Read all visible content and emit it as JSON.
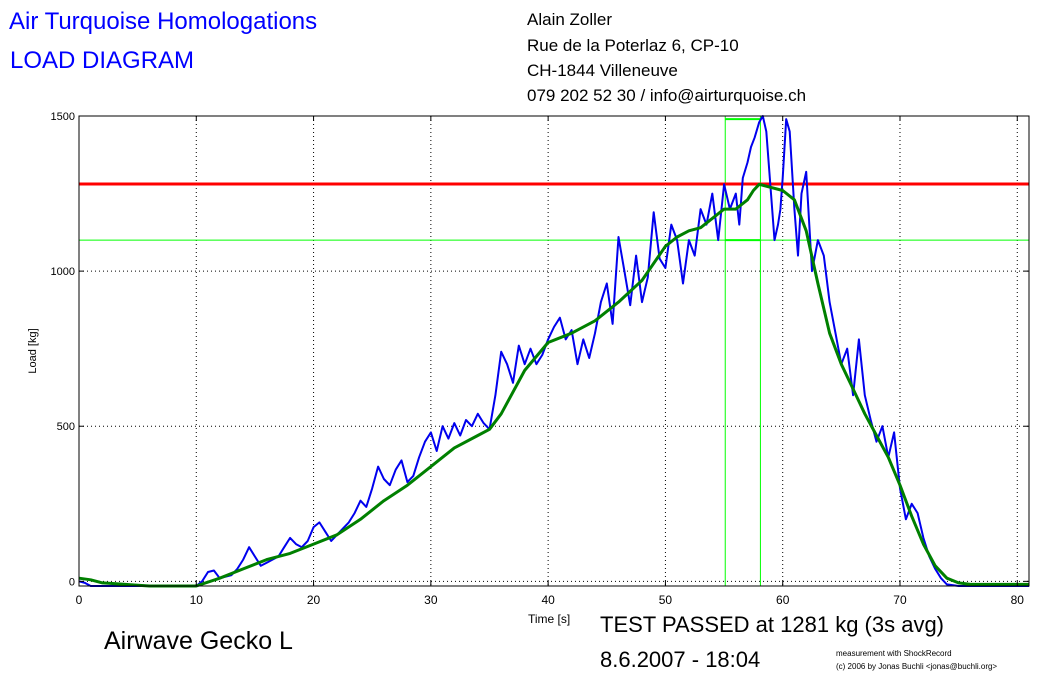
{
  "header": {
    "org_title": "Air Turquoise Homologations",
    "diagram_title": "LOAD DIAGRAM",
    "address": [
      "Alain Zoller",
      "Rue de la Poterlaz 6, CP-10",
      "CH-1844 Villeneuve",
      "079 202 52 30 / info@airturquoise.ch"
    ]
  },
  "footer": {
    "glider_name": "Airwave Gecko L",
    "result": "TEST PASSED at 1281 kg (3s avg)",
    "date": "8.6.2007 - 18:04",
    "credit_line1": "measurement with ShockRecord",
    "credit_line2": "(c) 2006 by Jonas Buchli <jonas@buchli.org>"
  },
  "colors": {
    "raw": "#0000ee",
    "avg": "#008000",
    "limit": "#ff0000",
    "window": "#00ff00"
  },
  "chart_data": {
    "type": "line",
    "xlabel": "Time [s]",
    "ylabel": "Load [kg]",
    "xlim": [
      0,
      81
    ],
    "ylim": [
      -15,
      1500
    ],
    "x_ticks": [
      0,
      10,
      20,
      30,
      40,
      50,
      60,
      70,
      80
    ],
    "y_ticks": [
      0,
      500,
      1000,
      1500
    ],
    "grid": true,
    "reference_lines": {
      "limit_load": 1281,
      "window_low": 1100,
      "window_high": 1490,
      "window_start": 55.1,
      "window_end": 58.1
    },
    "series": [
      {
        "key": "raw",
        "x": [
          0,
          0.5,
          1,
          2,
          3,
          4,
          5,
          6,
          7,
          8,
          9,
          10,
          10.5,
          11,
          11.5,
          12,
          12.5,
          13,
          13.5,
          14,
          14.5,
          15,
          15.5,
          16,
          16.5,
          17,
          17.5,
          18,
          18.5,
          19,
          19.5,
          20,
          20.5,
          21,
          21.5,
          22,
          22.5,
          23,
          23.5,
          24,
          24.5,
          25,
          25.5,
          26,
          26.5,
          27,
          27.5,
          28,
          28.5,
          29,
          29.5,
          30,
          30.5,
          31,
          31.5,
          32,
          32.5,
          33,
          33.5,
          34,
          34.5,
          35,
          35.5,
          36,
          36.5,
          37,
          37.5,
          38,
          38.5,
          39,
          39.5,
          40,
          40.5,
          41,
          41.5,
          42,
          42.5,
          43,
          43.5,
          44,
          44.5,
          45,
          45.5,
          46,
          46.5,
          47,
          47.5,
          48,
          48.5,
          49,
          49.5,
          50,
          50.5,
          51,
          51.5,
          52,
          52.5,
          53,
          53.5,
          54,
          54.5,
          55,
          55.5,
          56,
          56.3,
          56.6,
          57,
          57.3,
          57.6,
          58,
          58.3,
          58.6,
          59,
          59.3,
          59.6,
          59.8,
          60,
          60.3,
          60.6,
          61,
          61.3,
          61.6,
          62,
          62.5,
          63,
          63.5,
          64,
          64.5,
          65,
          65.5,
          66,
          66.5,
          67,
          67.5,
          68,
          68.5,
          69,
          69.5,
          70,
          70.5,
          71,
          71.5,
          72,
          72.5,
          73,
          73.5,
          74,
          75,
          76,
          78,
          81
        ],
        "values": [
          0,
          -5,
          -15,
          -15,
          -15,
          -15,
          -15,
          -15,
          -15,
          -15,
          -15,
          -15,
          0,
          30,
          35,
          10,
          15,
          20,
          40,
          70,
          110,
          80,
          50,
          60,
          70,
          80,
          110,
          140,
          120,
          110,
          130,
          175,
          190,
          160,
          130,
          150,
          170,
          190,
          220,
          260,
          240,
          300,
          370,
          330,
          310,
          360,
          390,
          320,
          340,
          400,
          450,
          480,
          420,
          500,
          460,
          510,
          470,
          520,
          500,
          540,
          510,
          490,
          600,
          740,
          700,
          640,
          760,
          700,
          750,
          700,
          730,
          780,
          820,
          850,
          780,
          810,
          700,
          780,
          720,
          800,
          900,
          960,
          830,
          1110,
          1000,
          890,
          1050,
          900,
          980,
          1190,
          1040,
          1010,
          1150,
          1100,
          960,
          1100,
          1050,
          1200,
          1150,
          1250,
          1100,
          1280,
          1200,
          1250,
          1150,
          1300,
          1350,
          1400,
          1430,
          1480,
          1500,
          1450,
          1250,
          1100,
          1150,
          1200,
          1300,
          1490,
          1450,
          1200,
          1050,
          1250,
          1320,
          1000,
          1100,
          1050,
          900,
          800,
          700,
          750,
          600,
          780,
          600,
          520,
          450,
          500,
          400,
          480,
          300,
          200,
          250,
          220,
          140,
          80,
          40,
          10,
          -10,
          -15,
          -15,
          -15,
          -15
        ]
      },
      {
        "key": "avg",
        "x": [
          0,
          1,
          2,
          4,
          6,
          8,
          10,
          12,
          14,
          16,
          18,
          20,
          22,
          24,
          26,
          28,
          30,
          32,
          34,
          35,
          36,
          38,
          40,
          42,
          44,
          46,
          48,
          50,
          51,
          52,
          53,
          54,
          55,
          56,
          57,
          57.5,
          58,
          59,
          60,
          61,
          62,
          63,
          64,
          65,
          66,
          67,
          68,
          69,
          70,
          71,
          72,
          73,
          74,
          75,
          76,
          78,
          81
        ],
        "values": [
          10,
          5,
          -5,
          -10,
          -15,
          -15,
          -15,
          10,
          40,
          70,
          90,
          120,
          150,
          200,
          260,
          310,
          370,
          430,
          470,
          490,
          540,
          680,
          770,
          800,
          840,
          900,
          970,
          1080,
          1110,
          1130,
          1140,
          1170,
          1200,
          1200,
          1230,
          1260,
          1280,
          1270,
          1260,
          1230,
          1130,
          960,
          800,
          700,
          620,
          540,
          470,
          400,
          310,
          210,
          120,
          50,
          10,
          -5,
          -10,
          -10,
          -10
        ]
      }
    ]
  }
}
